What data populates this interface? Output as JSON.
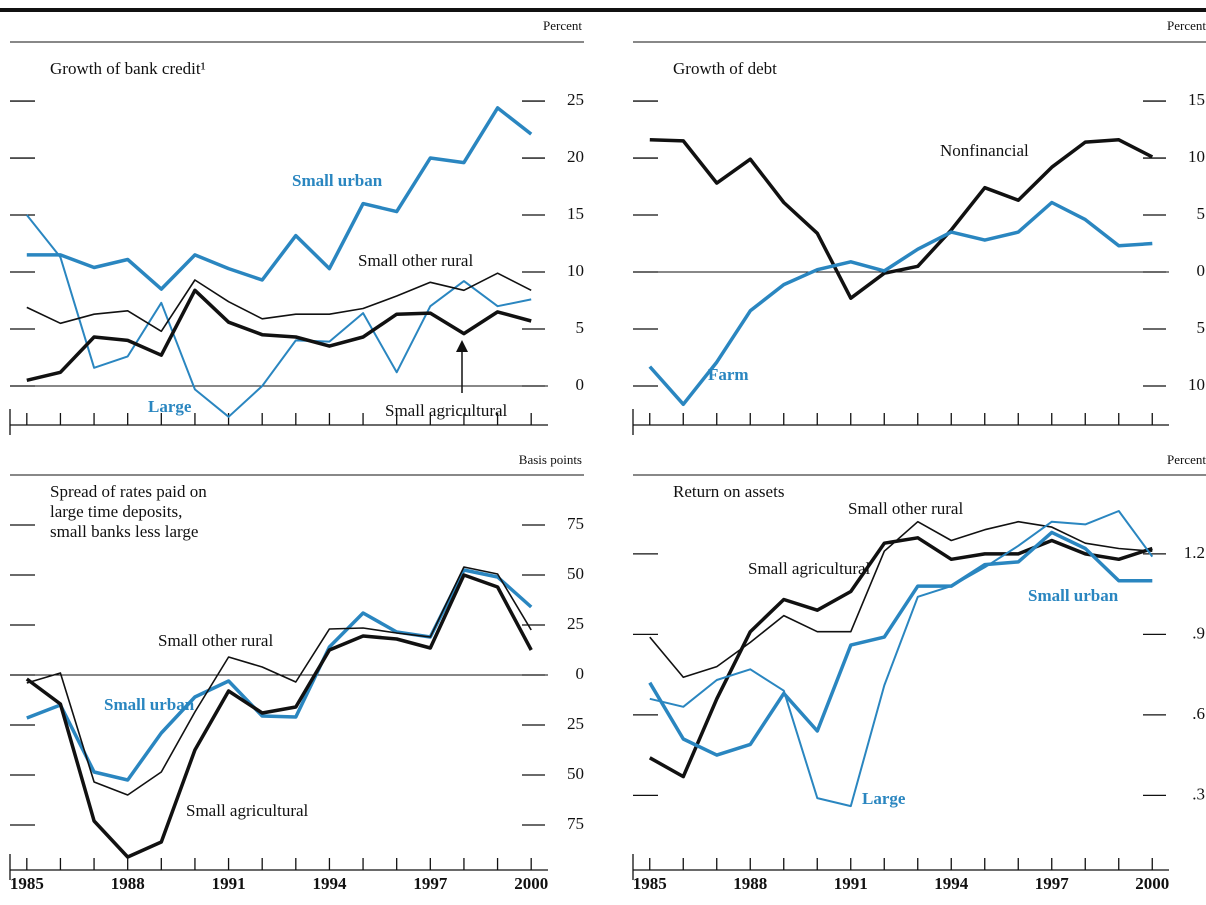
{
  "chart_data": [
    {
      "type": "line",
      "title": "Growth of bank credit¹",
      "y_unit": "Percent",
      "x": [
        1985,
        1986,
        1987,
        1988,
        1989,
        1990,
        1991,
        1992,
        1993,
        1994,
        1995,
        1996,
        1997,
        1998,
        1999,
        2000
      ],
      "xlim": [
        1984.5,
        2000.5
      ],
      "ylim": [
        -3.42,
        30.18
      ],
      "yticks": [
        0,
        5,
        10,
        15,
        20,
        25
      ],
      "zero_line": true,
      "series": [
        {
          "name": "Small urban",
          "color": "#2a86c0",
          "values": [
            11.5,
            11.5,
            10.4,
            11.1,
            8.5,
            11.5,
            10.3,
            9.3,
            13.2,
            10.3,
            16.0,
            15.3,
            20.0,
            19.6,
            24.4,
            22.1
          ]
        },
        {
          "name": "Large",
          "color": "#2a86c0",
          "values": [
            15.0,
            11.3,
            1.6,
            2.6,
            7.3,
            -0.3,
            -2.7,
            0.0,
            4.0,
            3.9,
            6.4,
            1.2,
            7.0,
            9.2,
            7.0,
            7.6
          ]
        },
        {
          "name": "Small other rural",
          "color": "#111111",
          "values": [
            6.9,
            5.5,
            6.3,
            6.6,
            4.8,
            9.3,
            7.4,
            5.9,
            6.3,
            6.3,
            6.8,
            7.9,
            9.1,
            8.4,
            9.9,
            8.4
          ]
        },
        {
          "name": "Small agricultural",
          "color": "#111111",
          "values": [
            0.5,
            1.2,
            4.3,
            4.0,
            2.7,
            8.4,
            5.6,
            4.5,
            4.3,
            3.5,
            4.3,
            6.3,
            6.4,
            4.6,
            6.5,
            5.7
          ]
        }
      ]
    },
    {
      "type": "line",
      "title": "Growth of debt",
      "y_unit": "Percent",
      "x": [
        1985,
        1986,
        1987,
        1988,
        1989,
        1990,
        1991,
        1992,
        1993,
        1994,
        1995,
        1996,
        1997,
        1998,
        1999,
        2000
      ],
      "xlim": [
        1984.5,
        2000.5
      ],
      "ylim": [
        -13.42,
        20.18
      ],
      "yticks": [
        {
          "value": -10,
          "label": "10"
        },
        {
          "value": -5,
          "label": "5"
        },
        0,
        5,
        10,
        15
      ],
      "zero_line": true,
      "series": [
        {
          "name": "Nonfinancial",
          "color": "#111111",
          "values": [
            11.6,
            11.5,
            7.8,
            9.9,
            6.1,
            3.4,
            -2.3,
            -0.1,
            0.5,
            3.7,
            7.4,
            6.3,
            9.2,
            11.4,
            11.6,
            10.1
          ]
        },
        {
          "name": "Farm",
          "color": "#2a86c0",
          "values": [
            -8.3,
            -11.6,
            -7.9,
            -3.4,
            -1.1,
            0.2,
            0.9,
            0.1,
            2.0,
            3.5,
            2.8,
            3.5,
            6.1,
            4.6,
            2.3,
            2.5
          ]
        }
      ]
    },
    {
      "type": "line",
      "title": [
        "Spread of rates paid on",
        "large time deposits,",
        "small banks less large"
      ],
      "y_unit": "Basis points",
      "x": [
        1985,
        1986,
        1987,
        1988,
        1989,
        1990,
        1991,
        1992,
        1993,
        1994,
        1995,
        1996,
        1997,
        1998,
        1999,
        2000
      ],
      "xlim": [
        1984.5,
        2000.5
      ],
      "ylim": [
        -97.5,
        100
      ],
      "yticks": [
        {
          "value": -75,
          "label": "75"
        },
        {
          "value": -50,
          "label": "50"
        },
        {
          "value": -25,
          "label": "25"
        },
        0,
        25,
        50,
        75
      ],
      "xticks": [
        1985,
        1988,
        1991,
        1994,
        1997,
        2000
      ],
      "zero_line": true,
      "series": [
        {
          "name": "Small urban",
          "color": "#2a86c0",
          "values": [
            -21.5,
            -15,
            -48.5,
            -52.5,
            -29,
            -11,
            -3,
            -20.5,
            -21,
            14,
            31,
            21.5,
            19,
            52.5,
            49,
            34
          ]
        },
        {
          "name": "Small other rural",
          "color": "#111111",
          "values": [
            -4,
            1,
            -53.5,
            -60,
            -48.5,
            -18.5,
            9,
            4,
            -3.5,
            23,
            23.5,
            21,
            19,
            54,
            50.5,
            22.5
          ]
        },
        {
          "name": "Small agricultural",
          "color": "#111111",
          "values": [
            -2,
            -14.5,
            -73,
            -91,
            -83.5,
            -37.5,
            -8,
            -19,
            -16,
            12.5,
            19.5,
            18,
            13.5,
            50,
            44,
            12.5
          ]
        }
      ]
    },
    {
      "type": "line",
      "title": "Return on assets",
      "y_unit": "Percent",
      "x": [
        1985,
        1986,
        1987,
        1988,
        1989,
        1990,
        1991,
        1992,
        1993,
        1994,
        1995,
        1996,
        1997,
        1998,
        1999,
        2000
      ],
      "xlim": [
        1984.5,
        2000.5
      ],
      "ylim": [
        0.022,
        1.494
      ],
      "yticks": [
        {
          "value": 0.3,
          "label": ".3"
        },
        {
          "value": 0.6,
          "label": ".6"
        },
        {
          "value": 0.9,
          "label": ".9"
        },
        1.2
      ],
      "xticks": [
        1985,
        1988,
        1991,
        1994,
        1997,
        2000
      ],
      "zero_line": false,
      "series": [
        {
          "name": "Small other rural",
          "color": "#111111",
          "values": [
            0.89,
            0.74,
            0.78,
            0.87,
            0.97,
            0.91,
            0.91,
            1.21,
            1.32,
            1.25,
            1.29,
            1.32,
            1.3,
            1.24,
            1.22,
            1.21
          ]
        },
        {
          "name": "Small agricultural",
          "color": "#111111",
          "values": [
            0.44,
            0.37,
            0.66,
            0.91,
            1.03,
            0.99,
            1.06,
            1.24,
            1.26,
            1.18,
            1.2,
            1.2,
            1.25,
            1.2,
            1.18,
            1.22
          ]
        },
        {
          "name": "Small urban",
          "color": "#2a86c0",
          "values": [
            0.72,
            0.51,
            0.45,
            0.49,
            0.68,
            0.54,
            0.86,
            0.89,
            1.08,
            1.08,
            1.16,
            1.17,
            1.28,
            1.22,
            1.1,
            1.1
          ]
        },
        {
          "name": "Large",
          "color": "#2a86c0",
          "values": [
            0.66,
            0.63,
            0.73,
            0.77,
            0.69,
            0.29,
            0.26,
            0.71,
            1.04,
            1.08,
            1.15,
            1.23,
            1.32,
            1.31,
            1.36,
            1.19
          ]
        }
      ]
    }
  ]
}
